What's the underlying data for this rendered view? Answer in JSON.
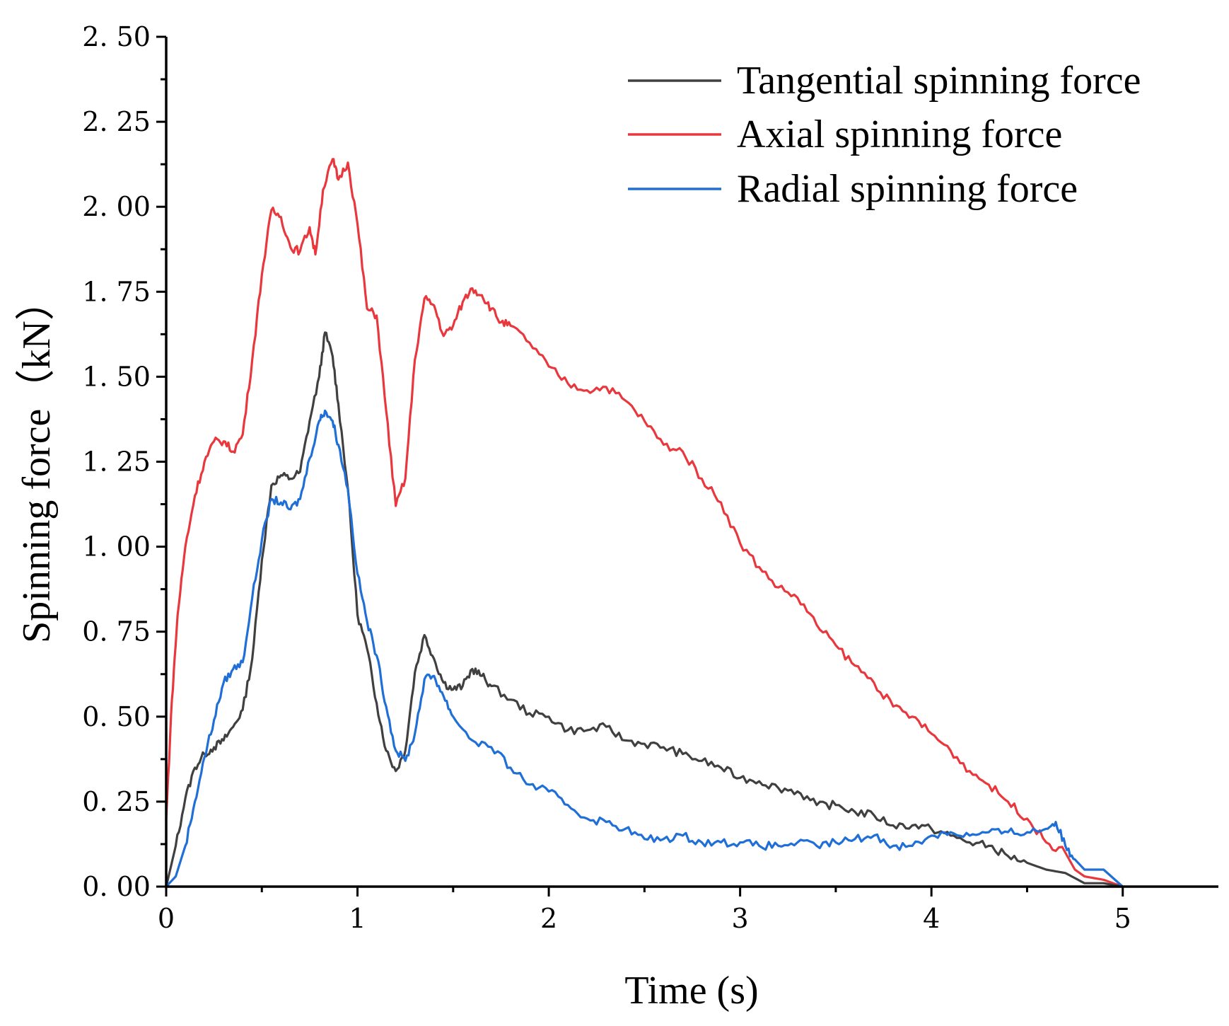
{
  "chart_data": {
    "type": "line",
    "title": "",
    "xlabel": "Time (s)",
    "ylabel": "Spinning force（kN）",
    "xlim": [
      0,
      5.5
    ],
    "ylim": [
      0,
      2.5
    ],
    "x_ticks": [
      "0",
      "1",
      "2",
      "3",
      "4",
      "5"
    ],
    "y_ticks": [
      "0. 00",
      "0. 25",
      "0. 50",
      "0. 75",
      "1. 00",
      "1. 25",
      "1. 50",
      "1. 75",
      "2. 00",
      "2. 25",
      "2. 50"
    ],
    "grid": false,
    "legend_position": "top-right",
    "series": [
      {
        "name": "Tangential spinning force",
        "color": "#404040",
        "points": [
          [
            0,
            0
          ],
          [
            0.05,
            0.12
          ],
          [
            0.1,
            0.26
          ],
          [
            0.15,
            0.35
          ],
          [
            0.2,
            0.39
          ],
          [
            0.25,
            0.41
          ],
          [
            0.3,
            0.43
          ],
          [
            0.35,
            0.47
          ],
          [
            0.4,
            0.52
          ],
          [
            0.45,
            0.67
          ],
          [
            0.5,
            0.96
          ],
          [
            0.55,
            1.18
          ],
          [
            0.6,
            1.21
          ],
          [
            0.65,
            1.2
          ],
          [
            0.7,
            1.22
          ],
          [
            0.75,
            1.37
          ],
          [
            0.8,
            1.5
          ],
          [
            0.83,
            1.63
          ],
          [
            0.87,
            1.56
          ],
          [
            0.9,
            1.42
          ],
          [
            0.95,
            1.17
          ],
          [
            1.0,
            0.8
          ],
          [
            1.05,
            0.7
          ],
          [
            1.1,
            0.54
          ],
          [
            1.15,
            0.4
          ],
          [
            1.2,
            0.34
          ],
          [
            1.25,
            0.4
          ],
          [
            1.3,
            0.63
          ],
          [
            1.35,
            0.74
          ],
          [
            1.4,
            0.67
          ],
          [
            1.45,
            0.6
          ],
          [
            1.5,
            0.58
          ],
          [
            1.55,
            0.59
          ],
          [
            1.6,
            0.64
          ],
          [
            1.65,
            0.62
          ],
          [
            1.7,
            0.59
          ],
          [
            1.8,
            0.55
          ],
          [
            1.9,
            0.51
          ],
          [
            2.0,
            0.5
          ],
          [
            2.1,
            0.46
          ],
          [
            2.2,
            0.46
          ],
          [
            2.3,
            0.47
          ],
          [
            2.4,
            0.43
          ],
          [
            2.5,
            0.42
          ],
          [
            2.6,
            0.41
          ],
          [
            2.7,
            0.39
          ],
          [
            2.8,
            0.37
          ],
          [
            2.9,
            0.35
          ],
          [
            3.0,
            0.32
          ],
          [
            3.1,
            0.31
          ],
          [
            3.2,
            0.29
          ],
          [
            3.3,
            0.28
          ],
          [
            3.4,
            0.24
          ],
          [
            3.5,
            0.24
          ],
          [
            3.6,
            0.22
          ],
          [
            3.7,
            0.21
          ],
          [
            3.8,
            0.18
          ],
          [
            3.9,
            0.18
          ],
          [
            4.0,
            0.17
          ],
          [
            4.1,
            0.15
          ],
          [
            4.2,
            0.13
          ],
          [
            4.3,
            0.12
          ],
          [
            4.4,
            0.09
          ],
          [
            4.5,
            0.07
          ],
          [
            4.6,
            0.05
          ],
          [
            4.7,
            0.04
          ],
          [
            4.8,
            0.01
          ],
          [
            4.9,
            0.01
          ],
          [
            5.0,
            0.0
          ]
        ]
      },
      {
        "name": "Axial spinning force",
        "color": "#e8383d",
        "points": [
          [
            0,
            0.2
          ],
          [
            0.03,
            0.55
          ],
          [
            0.06,
            0.8
          ],
          [
            0.1,
            1.0
          ],
          [
            0.15,
            1.15
          ],
          [
            0.2,
            1.25
          ],
          [
            0.25,
            1.31
          ],
          [
            0.3,
            1.31
          ],
          [
            0.35,
            1.28
          ],
          [
            0.4,
            1.33
          ],
          [
            0.45,
            1.55
          ],
          [
            0.5,
            1.8
          ],
          [
            0.55,
            1.99
          ],
          [
            0.6,
            1.97
          ],
          [
            0.65,
            1.88
          ],
          [
            0.7,
            1.87
          ],
          [
            0.75,
            1.94
          ],
          [
            0.78,
            1.86
          ],
          [
            0.82,
            2.05
          ],
          [
            0.87,
            2.14
          ],
          [
            0.9,
            2.08
          ],
          [
            0.95,
            2.13
          ],
          [
            1.0,
            1.95
          ],
          [
            1.05,
            1.7
          ],
          [
            1.1,
            1.68
          ],
          [
            1.15,
            1.4
          ],
          [
            1.2,
            1.12
          ],
          [
            1.25,
            1.2
          ],
          [
            1.3,
            1.55
          ],
          [
            1.35,
            1.73
          ],
          [
            1.4,
            1.71
          ],
          [
            1.45,
            1.62
          ],
          [
            1.5,
            1.65
          ],
          [
            1.55,
            1.72
          ],
          [
            1.6,
            1.76
          ],
          [
            1.65,
            1.74
          ],
          [
            1.7,
            1.7
          ],
          [
            1.75,
            1.66
          ],
          [
            1.8,
            1.65
          ],
          [
            1.9,
            1.6
          ],
          [
            2.0,
            1.53
          ],
          [
            2.1,
            1.48
          ],
          [
            2.2,
            1.46
          ],
          [
            2.3,
            1.47
          ],
          [
            2.4,
            1.43
          ],
          [
            2.5,
            1.37
          ],
          [
            2.6,
            1.3
          ],
          [
            2.7,
            1.28
          ],
          [
            2.8,
            1.2
          ],
          [
            2.9,
            1.13
          ],
          [
            3.0,
            1.01
          ],
          [
            3.1,
            0.94
          ],
          [
            3.2,
            0.88
          ],
          [
            3.3,
            0.85
          ],
          [
            3.4,
            0.77
          ],
          [
            3.5,
            0.71
          ],
          [
            3.6,
            0.65
          ],
          [
            3.7,
            0.6
          ],
          [
            3.8,
            0.53
          ],
          [
            3.9,
            0.5
          ],
          [
            4.0,
            0.45
          ],
          [
            4.1,
            0.4
          ],
          [
            4.2,
            0.34
          ],
          [
            4.3,
            0.3
          ],
          [
            4.4,
            0.25
          ],
          [
            4.5,
            0.2
          ],
          [
            4.6,
            0.13
          ],
          [
            4.7,
            0.1
          ],
          [
            4.75,
            0.05
          ],
          [
            4.8,
            0.03
          ],
          [
            4.9,
            0.02
          ],
          [
            5.0,
            0.0
          ]
        ]
      },
      {
        "name": "Radial spinning force",
        "color": "#1f6fd6",
        "points": [
          [
            0,
            0
          ],
          [
            0.05,
            0.03
          ],
          [
            0.1,
            0.12
          ],
          [
            0.15,
            0.25
          ],
          [
            0.2,
            0.38
          ],
          [
            0.25,
            0.49
          ],
          [
            0.3,
            0.6
          ],
          [
            0.35,
            0.64
          ],
          [
            0.4,
            0.66
          ],
          [
            0.45,
            0.85
          ],
          [
            0.5,
            1.02
          ],
          [
            0.55,
            1.14
          ],
          [
            0.6,
            1.13
          ],
          [
            0.65,
            1.11
          ],
          [
            0.7,
            1.14
          ],
          [
            0.75,
            1.26
          ],
          [
            0.8,
            1.37
          ],
          [
            0.83,
            1.4
          ],
          [
            0.87,
            1.37
          ],
          [
            0.9,
            1.3
          ],
          [
            0.95,
            1.17
          ],
          [
            1.0,
            0.92
          ],
          [
            1.05,
            0.78
          ],
          [
            1.1,
            0.68
          ],
          [
            1.15,
            0.53
          ],
          [
            1.2,
            0.4
          ],
          [
            1.25,
            0.37
          ],
          [
            1.3,
            0.45
          ],
          [
            1.35,
            0.61
          ],
          [
            1.4,
            0.62
          ],
          [
            1.45,
            0.56
          ],
          [
            1.5,
            0.5
          ],
          [
            1.6,
            0.43
          ],
          [
            1.7,
            0.41
          ],
          [
            1.8,
            0.35
          ],
          [
            1.9,
            0.3
          ],
          [
            2.0,
            0.28
          ],
          [
            2.1,
            0.24
          ],
          [
            2.2,
            0.2
          ],
          [
            2.3,
            0.19
          ],
          [
            2.4,
            0.17
          ],
          [
            2.5,
            0.14
          ],
          [
            2.6,
            0.14
          ],
          [
            2.7,
            0.15
          ],
          [
            2.8,
            0.13
          ],
          [
            2.9,
            0.13
          ],
          [
            3.0,
            0.13
          ],
          [
            3.1,
            0.12
          ],
          [
            3.2,
            0.12
          ],
          [
            3.3,
            0.13
          ],
          [
            3.4,
            0.12
          ],
          [
            3.5,
            0.13
          ],
          [
            3.6,
            0.14
          ],
          [
            3.7,
            0.15
          ],
          [
            3.8,
            0.12
          ],
          [
            3.9,
            0.12
          ],
          [
            4.0,
            0.15
          ],
          [
            4.1,
            0.16
          ],
          [
            4.2,
            0.15
          ],
          [
            4.3,
            0.16
          ],
          [
            4.4,
            0.16
          ],
          [
            4.5,
            0.16
          ],
          [
            4.6,
            0.17
          ],
          [
            4.65,
            0.19
          ],
          [
            4.7,
            0.12
          ],
          [
            4.75,
            0.08
          ],
          [
            4.8,
            0.05
          ],
          [
            4.9,
            0.05
          ],
          [
            5.0,
            0.0
          ]
        ]
      }
    ]
  }
}
